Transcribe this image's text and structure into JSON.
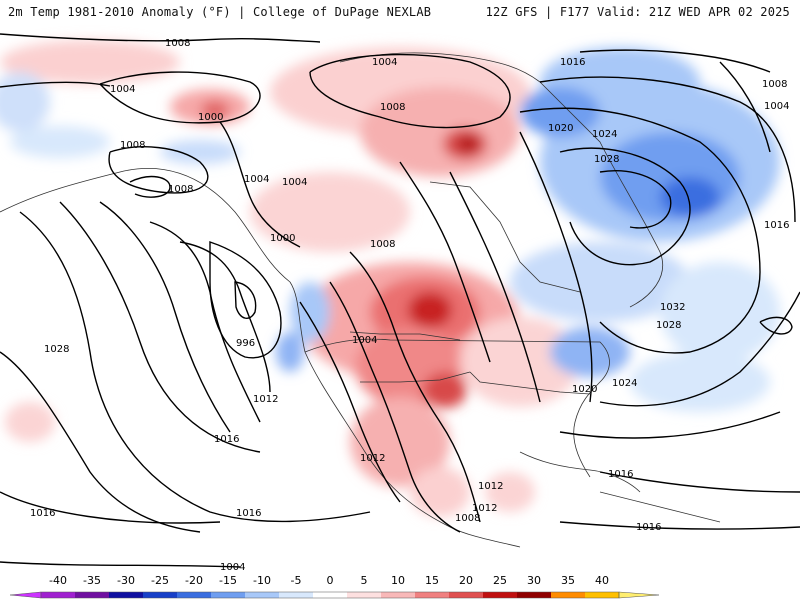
{
  "header": {
    "left_title": "2m Temp 1981-2010 Anomaly (°F) | College of DuPage NEXLAB",
    "right_title": "12Z GFS | F177 Valid: 21Z WED APR 02 2025"
  },
  "isobar_labels": [
    "1008",
    "1004",
    "1004",
    "1000",
    "1008",
    "1008",
    "1004",
    "1004",
    "1008",
    "1000",
    "996",
    "1012",
    "1016",
    "1028",
    "1016",
    "1016",
    "1012",
    "1004",
    "1012",
    "1008",
    "1008",
    "1012",
    "1016",
    "1016",
    "1020",
    "1020",
    "1024",
    "1028",
    "1032",
    "1028",
    "1024",
    "1016",
    "1004",
    "1008"
  ],
  "colorbar": {
    "tick_labels": [
      "-40",
      "-35",
      "-30",
      "-25",
      "-20",
      "-15",
      "-10",
      "-5",
      "0",
      "5",
      "10",
      "15",
      "20",
      "25",
      "30",
      "35",
      "40"
    ],
    "colors": [
      "#cc33ff",
      "#a020d0",
      "#7010a0",
      "#1010a0",
      "#1840c8",
      "#3a6ee0",
      "#6f9ef0",
      "#a8c8f8",
      "#d8e8fc",
      "#ffffff",
      "#fde0e0",
      "#f8b8b8",
      "#f08080",
      "#e05050",
      "#c01010",
      "#900000",
      "#ff8c00",
      "#ffc000",
      "#ffee70"
    ]
  }
}
